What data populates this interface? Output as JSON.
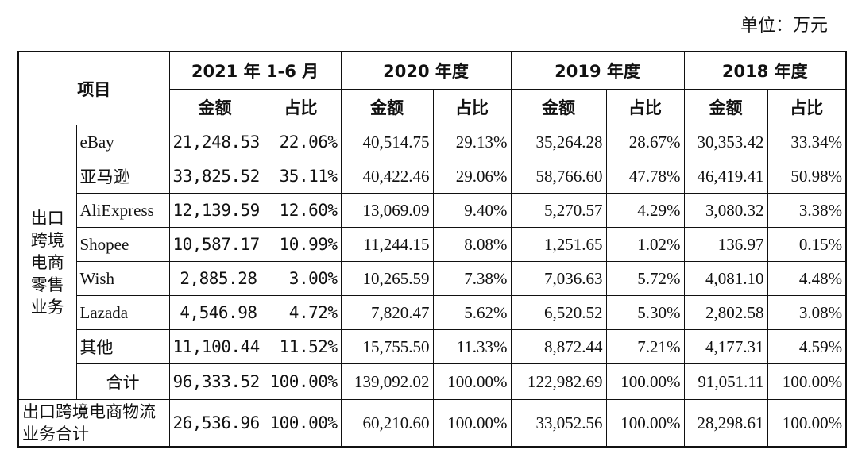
{
  "unit_label": "单位：万元",
  "header": {
    "item_label": "项目",
    "periods": [
      "2021 年 1-6 月",
      "2020 年度",
      "2019 年度",
      "2018 年度"
    ],
    "amount_label": "金额",
    "ratio_label": "占比"
  },
  "category_label": "出口跨境电商零售业务",
  "rows": [
    {
      "channel": "eBay",
      "values": [
        "21,248.53",
        "22.06%",
        "40,514.75",
        "29.13%",
        "35,264.28",
        "28.67%",
        "30,353.42",
        "33.34%"
      ]
    },
    {
      "channel": "亚马逊",
      "values": [
        "33,825.52",
        "35.11%",
        "40,422.46",
        "29.06%",
        "58,766.60",
        "47.78%",
        "46,419.41",
        "50.98%"
      ]
    },
    {
      "channel": "AliExpress",
      "values": [
        "12,139.59",
        "12.60%",
        "13,069.09",
        "9.40%",
        "5,270.57",
        "4.29%",
        "3,080.32",
        "3.38%"
      ]
    },
    {
      "channel": "Shopee",
      "values": [
        "10,587.17",
        "10.99%",
        "11,244.15",
        "8.08%",
        "1,251.65",
        "1.02%",
        "136.97",
        "0.15%"
      ]
    },
    {
      "channel": "Wish",
      "values": [
        "2,885.28",
        "3.00%",
        "10,265.59",
        "7.38%",
        "7,036.63",
        "5.72%",
        "4,081.10",
        "4.48%"
      ]
    },
    {
      "channel": "Lazada",
      "values": [
        "4,546.98",
        "4.72%",
        "7,820.47",
        "5.62%",
        "6,520.52",
        "5.30%",
        "2,802.58",
        "3.08%"
      ]
    },
    {
      "channel": "其他",
      "values": [
        "11,100.44",
        "11.52%",
        "15,755.50",
        "11.33%",
        "8,872.44",
        "7.21%",
        "4,177.31",
        "4.59%"
      ]
    }
  ],
  "subtotal": {
    "label": "合计",
    "values": [
      "96,333.52",
      "100.00%",
      "139,092.02",
      "100.00%",
      "122,982.69",
      "100.00%",
      "91,051.11",
      "100.00%"
    ]
  },
  "logistics_total": {
    "label": "出口跨境电商物流业务合计",
    "values": [
      "26,536.96",
      "100.00%",
      "60,210.60",
      "100.00%",
      "33,052.56",
      "100.00%",
      "28,298.61",
      "100.00%"
    ]
  }
}
